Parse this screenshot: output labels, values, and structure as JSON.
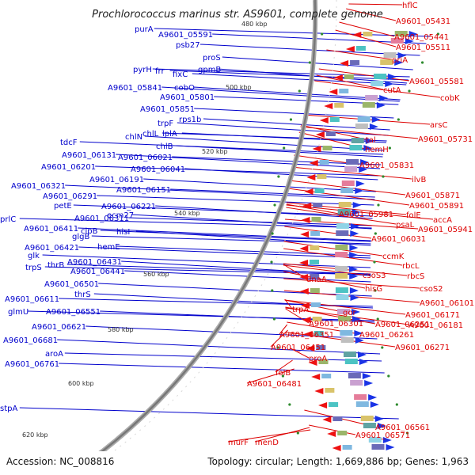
{
  "title": "Prochlorococcus marinus str. AS9601, complete genome",
  "footer": {
    "accession": "Accession: NC_008816",
    "stats": "Topology: circular; Length: 1,669,886 bp; Genes: 1,963"
  },
  "colors": {
    "forward_label": "#0000cc",
    "reverse_label": "#dd0000",
    "backbone": "#888888",
    "gc_dots": "#2e8b2e"
  },
  "ticks": [
    "480 kbp",
    "500 kbp",
    "520 kbp",
    "540 kbp",
    "560 kbp",
    "580 kbp",
    "600 kbp",
    "620 kbp"
  ],
  "forward_labels": [
    "purA",
    "A9601_05591",
    "psb27",
    "proS",
    "gpmB",
    "pyrH",
    "frr",
    "fixC",
    "cobO",
    "A9601_05841",
    "A9601_05801",
    "A9601_05851",
    "rps1b",
    "trpF",
    "chlN",
    "chlL",
    "lplA",
    "chlB",
    "tdcF",
    "A9601_06131",
    "A9601_06021",
    "A9601_06201",
    "A9601_06041",
    "A9601_06191",
    "A9601_06321",
    "A9601_06151",
    "A9601_06291",
    "petE",
    "A9601_06221",
    "ecm27",
    "A9601_06311",
    "prlC",
    "clpB",
    "A9601_06411",
    "hisI",
    "glgB",
    "hemE",
    "A9601_06421",
    "glk",
    "A9601_06431",
    "trpS",
    "thrB",
    "A9601_06441",
    "A9601_06501",
    "thrS",
    "A9601_06611",
    "glmU",
    "A9601_06551",
    "A9601_06621",
    "A9601_06681",
    "aroA",
    "A9601_06761",
    "stpA"
  ],
  "reverse_labels": [
    "hflC",
    "A9601_05431",
    "A9601_05441",
    "A9601_05511",
    "priA",
    "A9601_05581",
    "cutA",
    "cobK",
    "arsC",
    "A9601_05731",
    "tal",
    "hemH",
    "A9601_05831",
    "ilvB",
    "A9601_05871",
    "A9601_05891",
    "A9601_05981",
    "folE",
    "accA",
    "psaL",
    "A9601_05941",
    "A9601_06031",
    "ccmK",
    "rbcL",
    "csoS3",
    "rbcS",
    "dnaA",
    "hisG",
    "csoS2",
    "A9601_06101",
    "A9601_06171",
    "A9601_06181",
    "trpA",
    "gor",
    "A9601_06301",
    "A9601_06251",
    "A9601_06351",
    "A9601_06261",
    "A9601_06271",
    "A9601_06451",
    "proA",
    "folB",
    "A9601_06481",
    "A9601_06561",
    "A9601_06571",
    "murF",
    "menD"
  ]
}
